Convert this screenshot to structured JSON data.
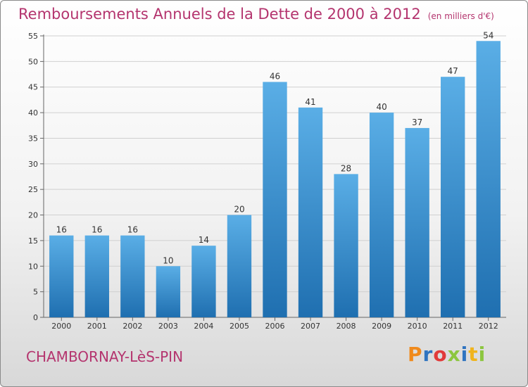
{
  "title": "Remboursements Annuels de la Dette de 2000 à 2012",
  "unit": "(en milliers d'€)",
  "commune": "CHAMBORNAY-LèS-PIN",
  "logo": {
    "letters": [
      "P",
      "r",
      "o",
      "x",
      "i",
      "t",
      "i"
    ],
    "colors": [
      "#f08a1c",
      "#2f74c0",
      "#e13a3a",
      "#8cc63f",
      "#2f74c0",
      "#f0b41c",
      "#8cc63f"
    ]
  },
  "colors": {
    "bar_top": "#5aaee6",
    "bar_bottom": "#1f6fb0",
    "title": "#b4346e"
  },
  "chart_data": {
    "type": "bar",
    "categories": [
      "2000",
      "2001",
      "2002",
      "2003",
      "2004",
      "2005",
      "2006",
      "2007",
      "2008",
      "2009",
      "2010",
      "2011",
      "2012"
    ],
    "values": [
      16,
      16,
      16,
      10,
      14,
      20,
      46,
      41,
      28,
      40,
      37,
      47,
      54
    ],
    "ylim": [
      0,
      55
    ],
    "yticks": [
      0,
      5,
      10,
      15,
      20,
      25,
      30,
      35,
      40,
      45,
      50,
      55
    ],
    "grid": true
  }
}
